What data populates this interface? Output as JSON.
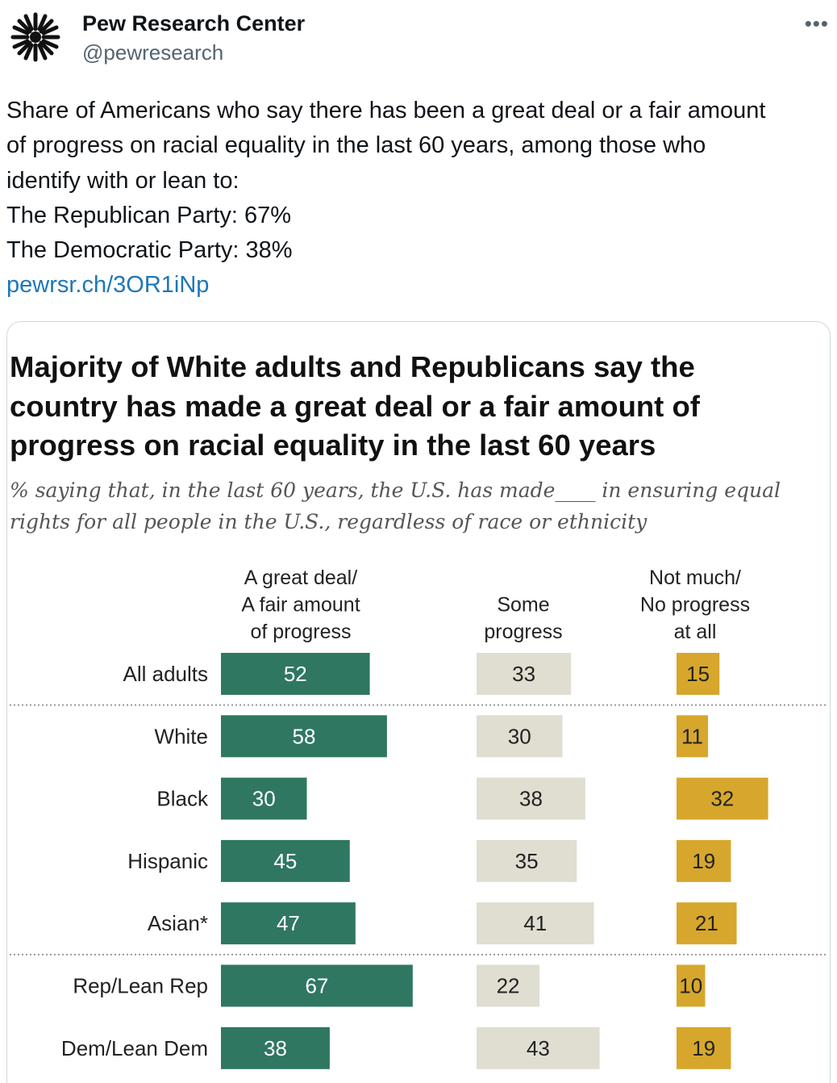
{
  "tweet": {
    "display_name": "Pew Research Center",
    "handle": "@pewresearch",
    "more_icon": "more-dots-icon",
    "text_lines": [
      "Share of Americans who say there has been a great deal or a fair amount",
      "of progress on racial equality in the last 60 years, among those who",
      "identify with or lean to:",
      "The Republican Party: 67%",
      "The Democratic Party: 38%"
    ],
    "link": "pewrsr.ch/3OR1iNp"
  },
  "chart": {
    "title_lines": [
      "Majority of White adults and Republicans say the",
      "country has made a great deal or a fair amount of",
      "progress on racial equality in the last 60 years"
    ],
    "subtitle_lines": [
      "% saying that, in the last 60 years, the U.S. has made____ in ensuring equal",
      "rights for all people in the U.S., regardless of race or ethnicity"
    ]
  },
  "chart_data": {
    "type": "bar",
    "orientation": "horizontal",
    "title": "Majority of White adults and Republicans say the country has made a great deal or a fair amount of progress on racial equality in the last 60 years",
    "subtitle": "% saying that, in the last 60 years, the U.S. has made____ in ensuring equal rights for all people in the U.S., regardless of race or ethnicity",
    "categories": [
      "All adults",
      "White",
      "Black",
      "Hispanic",
      "Asian*",
      "Rep/Lean Rep",
      "Dem/Lean Dem"
    ],
    "series": [
      {
        "name": "A great deal/ A fair amount of progress",
        "header_lines": [
          "A great deal/",
          "A fair amount",
          "of progress"
        ],
        "color": "#2f7760",
        "text_color": "#ffffff",
        "values": [
          52,
          58,
          30,
          45,
          47,
          67,
          38
        ]
      },
      {
        "name": "Some progress",
        "header_lines": [
          "Some",
          "progress"
        ],
        "color": "#e0ddd1",
        "text_color": "#222222",
        "values": [
          33,
          30,
          38,
          35,
          41,
          22,
          43
        ]
      },
      {
        "name": "Not much/ No progress at all",
        "header_lines": [
          "Not much/",
          "No progress",
          "at all"
        ],
        "color": "#d6a72c",
        "text_color": "#222222",
        "values": [
          15,
          11,
          32,
          19,
          21,
          10,
          19
        ]
      }
    ],
    "group_dividers_after": [
      0,
      4
    ],
    "xlim": [
      0,
      100
    ]
  }
}
